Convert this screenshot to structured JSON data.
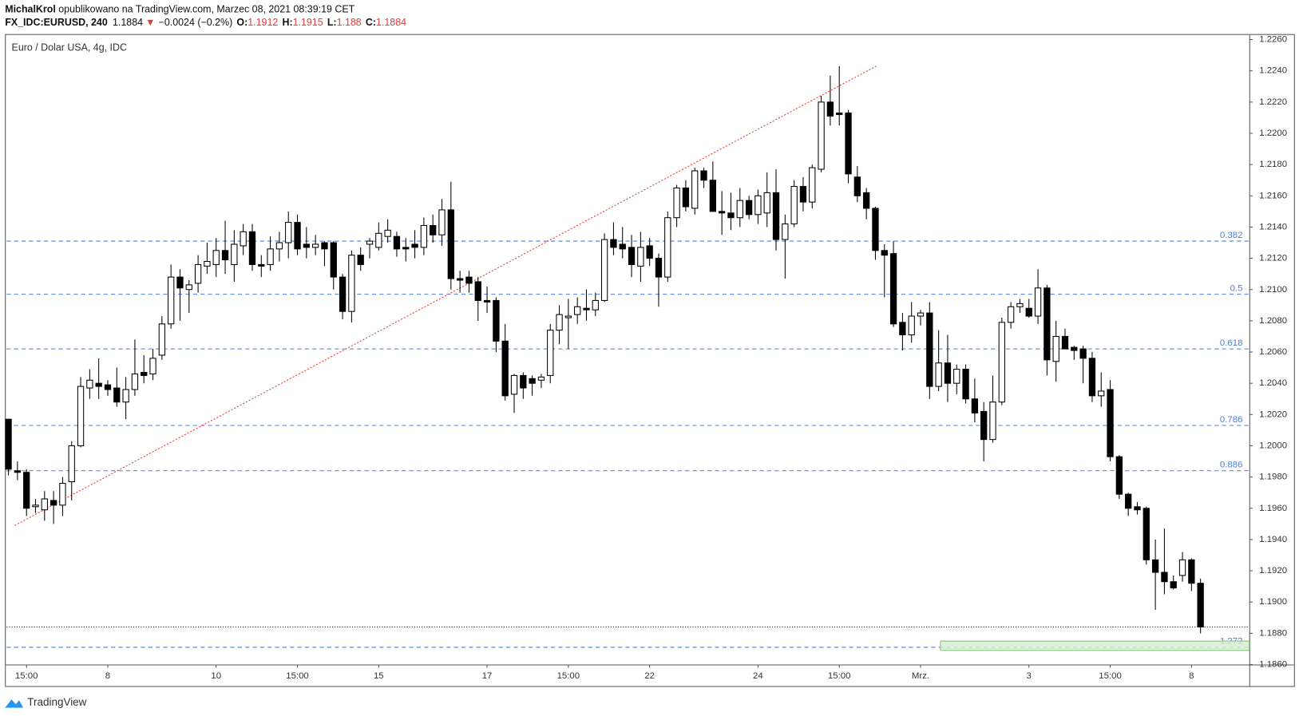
{
  "header": {
    "author": "MichalKrol",
    "published": " opublikowano na TradingView.com, Marzec 08, 2021 08:39:19 CET",
    "symbol": "FX_IDC:EURUSD, 240",
    "direction": "▼",
    "change": "−0.0024 (−0.2%)",
    "open_label": "O:",
    "high_label": "H:",
    "low_label": "L:",
    "close_label": "C:"
  },
  "footer": {
    "brand": "TradingView"
  },
  "chart_data": {
    "type": "candlestick",
    "title": "Euro / Dolar USA, 4g, IDC",
    "up_color": "#ffffff",
    "down_color": "#000000",
    "border_color": "#000000",
    "xlim": [
      -0.2,
      137.4
    ],
    "xticks": [
      {
        "value": 2,
        "label": "15:00"
      },
      {
        "value": 11,
        "label": "8"
      },
      {
        "value": 23,
        "label": "10"
      },
      {
        "value": 32,
        "label": "15:00"
      },
      {
        "value": 41,
        "label": "15"
      },
      {
        "value": 53,
        "label": "17"
      },
      {
        "value": 62,
        "label": "15:00"
      },
      {
        "value": 71,
        "label": "22"
      },
      {
        "value": 83,
        "label": "24"
      },
      {
        "value": 92,
        "label": "15:00"
      },
      {
        "value": 101,
        "label": "Mrz."
      },
      {
        "value": 113,
        "label": "3"
      },
      {
        "value": 122,
        "label": "15:00"
      },
      {
        "value": 131,
        "label": "8"
      }
    ],
    "ylim": [
      1.186,
      1.2263
    ],
    "yticks": [
      {
        "value": 1.226,
        "label": "1.2260"
      },
      {
        "value": 1.224,
        "label": "1.2240"
      },
      {
        "value": 1.222,
        "label": "1.2220"
      },
      {
        "value": 1.22,
        "label": "1.2200"
      },
      {
        "value": 1.218,
        "label": "1.2180"
      },
      {
        "value": 1.216,
        "label": "1.2160"
      },
      {
        "value": 1.214,
        "label": "1.2140"
      },
      {
        "value": 1.212,
        "label": "1.2120"
      },
      {
        "value": 1.21,
        "label": "1.2100"
      },
      {
        "value": 1.208,
        "label": "1.2080"
      },
      {
        "value": 1.206,
        "label": "1.2060"
      },
      {
        "value": 1.204,
        "label": "1.2040"
      },
      {
        "value": 1.202,
        "label": "1.2020"
      },
      {
        "value": 1.2,
        "label": "1.2000"
      },
      {
        "value": 1.198,
        "label": "1.1980"
      },
      {
        "value": 1.196,
        "label": "1.1960"
      },
      {
        "value": 1.194,
        "label": "1.1940"
      },
      {
        "value": 1.192,
        "label": "1.1920"
      },
      {
        "value": 1.19,
        "label": "1.1900"
      },
      {
        "value": 1.188,
        "label": "1.1880"
      },
      {
        "value": 1.186,
        "label": "1.1860"
      }
    ],
    "open": [
      1.2017,
      1.1984,
      1.1983,
      1.1961,
      1.1959,
      1.1965,
      1.1962,
      1.1977,
      1.2,
      1.2037,
      1.204,
      1.2039,
      1.2037,
      1.2028,
      1.2036,
      1.2047,
      1.2046,
      1.2058,
      1.2078,
      1.2108,
      1.21,
      1.2104,
      1.2115,
      1.2116,
      1.2125,
      1.2116,
      1.2128,
      1.2137,
      1.2116,
      1.2116,
      1.2126,
      1.213,
      1.2143,
      1.2129,
      1.2127,
      1.213,
      1.213,
      1.2108,
      1.2086,
      1.2122,
      1.2129,
      1.2127,
      1.2134,
      1.2134,
      1.2127,
      1.2129,
      1.2127,
      1.2141,
      1.2135,
      1.2151,
      1.2107,
      1.2108,
      1.2105,
      1.2093,
      1.2093,
      1.2067,
      1.2033,
      1.2045,
      1.2043,
      1.2042,
      1.2045,
      1.2074,
      1.2082,
      1.2084,
      1.2088,
      1.2087,
      1.2093,
      1.2132,
      1.2129,
      1.2127,
      1.2115,
      1.2128,
      1.212,
      1.2108,
      1.2146,
      1.2165,
      1.2152,
      1.2176,
      1.217,
      1.215,
      1.2149,
      1.2146,
      1.2157,
      1.2148,
      1.2149,
      1.2162,
      1.2132,
      1.2142,
      1.2166,
      1.2156,
      1.2177,
      1.222,
      1.2213,
      1.2213,
      1.2172,
      1.2162,
      1.2152,
      1.2125,
      1.2123,
      1.2079,
      1.2071,
      1.2083,
      1.2085,
      1.2038,
      1.2053,
      1.204,
      1.2049,
      1.203,
      1.2022,
      1.2004,
      1.2028,
      1.2079,
      1.2089,
      1.2088,
      1.2083,
      1.2101,
      1.2054,
      1.207,
      1.2063,
      1.2062,
      1.2056,
      1.2032,
      1.2036,
      1.1993,
      1.1969,
      1.1961,
      1.196,
      1.1927,
      1.1919,
      1.1913,
      1.1917,
      1.1927,
      1.1912
    ],
    "high": [
      1.2017,
      1.199,
      1.1985,
      1.1966,
      1.1971,
      1.1971,
      1.198,
      1.2003,
      1.2044,
      1.2049,
      1.2056,
      1.2042,
      1.205,
      1.2044,
      1.2068,
      1.2058,
      1.2062,
      1.2083,
      1.2116,
      1.2113,
      1.2106,
      1.2122,
      1.213,
      1.2133,
      1.2144,
      1.2138,
      1.2142,
      1.2142,
      1.2122,
      1.2134,
      1.2137,
      1.215,
      1.2148,
      1.214,
      1.2135,
      1.2131,
      1.2131,
      1.211,
      1.2125,
      1.2127,
      1.2133,
      1.2143,
      1.2145,
      1.2137,
      1.2133,
      1.2138,
      1.2146,
      1.2148,
      1.2158,
      1.2169,
      1.2112,
      1.2112,
      1.2108,
      1.2102,
      1.2095,
      1.2078,
      1.2046,
      1.2047,
      1.2045,
      1.2046,
      1.2078,
      1.209,
      1.2094,
      1.2095,
      1.21,
      1.2098,
      1.2136,
      1.2143,
      1.214,
      1.2135,
      1.2137,
      1.2133,
      1.2123,
      1.215,
      1.2167,
      1.217,
      1.2178,
      1.2178,
      1.2182,
      1.2163,
      1.2162,
      1.2165,
      1.216,
      1.2164,
      1.2175,
      1.2177,
      1.2148,
      1.217,
      1.2172,
      1.218,
      1.2224,
      1.2237,
      1.2243,
      1.2215,
      1.2179,
      1.2165,
      1.2153,
      1.2129,
      1.2131,
      1.2085,
      1.2092,
      1.2087,
      1.2092,
      1.2074,
      1.2071,
      1.2052,
      1.2052,
      1.2043,
      1.2028,
      1.2045,
      1.2082,
      1.2092,
      1.2094,
      1.2094,
      1.2113,
      1.2103,
      1.208,
      1.2075,
      1.2064,
      1.2064,
      1.206,
      1.2047,
      1.2042,
      1.1994,
      1.197,
      1.1964,
      1.1961,
      1.194,
      1.1947,
      1.1917,
      1.1932,
      1.1928,
      1.1915
    ],
    "low": [
      1.1981,
      1.1978,
      1.1955,
      1.1957,
      1.1952,
      1.195,
      1.1955,
      1.1965,
      1.1999,
      1.203,
      1.203,
      1.2032,
      1.2025,
      1.2017,
      1.2032,
      1.204,
      1.2042,
      1.2055,
      1.2075,
      1.208,
      1.2085,
      1.2098,
      1.211,
      1.2108,
      1.211,
      1.2105,
      1.2122,
      1.2112,
      1.2108,
      1.2112,
      1.2118,
      1.212,
      1.2122,
      1.212,
      1.2122,
      1.2115,
      1.21,
      1.2081,
      1.2079,
      1.2112,
      1.212,
      1.2125,
      1.213,
      1.2121,
      1.2118,
      1.212,
      1.2122,
      1.213,
      1.2128,
      1.21,
      1.2098,
      1.2098,
      1.208,
      1.2085,
      1.206,
      1.2029,
      1.2021,
      1.203,
      1.2032,
      1.2037,
      1.204,
      1.2065,
      1.2062,
      1.2078,
      1.208,
      1.2083,
      1.2092,
      1.2122,
      1.212,
      1.2108,
      1.2105,
      1.2115,
      1.2089,
      1.2105,
      1.214,
      1.215,
      1.2148,
      1.2165,
      1.215,
      1.2135,
      1.2138,
      1.214,
      1.2145,
      1.2142,
      1.214,
      1.2125,
      1.2107,
      1.214,
      1.215,
      1.2152,
      1.2175,
      1.2205,
      1.2205,
      1.2168,
      1.2156,
      1.2145,
      1.2119,
      1.2095,
      1.2076,
      1.2061,
      1.2066,
      1.2077,
      1.203,
      1.2035,
      1.2028,
      1.2033,
      1.2027,
      1.2015,
      1.199,
      1.2002,
      1.2026,
      1.2075,
      1.2085,
      1.2082,
      1.2078,
      1.2045,
      1.2041,
      1.2062,
      1.2055,
      1.204,
      1.2028,
      1.2025,
      1.199,
      1.1966,
      1.1955,
      1.1956,
      1.1924,
      1.1895,
      1.1905,
      1.1908,
      1.1913,
      1.1907,
      1.188
    ],
    "close": [
      1.1985,
      1.1983,
      1.196,
      1.1962,
      1.1966,
      1.1962,
      1.1976,
      1.2,
      1.2038,
      1.2042,
      1.2038,
      1.2036,
      1.2028,
      1.2036,
      1.2046,
      1.2045,
      1.2056,
      1.2078,
      1.2108,
      1.2101,
      1.2103,
      1.2116,
      1.2118,
      1.2125,
      1.2119,
      1.2129,
      1.2137,
      1.2116,
      1.2115,
      1.2126,
      1.213,
      1.2143,
      1.2126,
      1.2127,
      1.2129,
      1.2126,
      1.2108,
      1.2086,
      1.2122,
      1.2116,
      1.2131,
      1.2136,
      1.2138,
      1.2126,
      1.2126,
      1.2127,
      1.2141,
      1.2135,
      1.2151,
      1.2107,
      1.2106,
      1.2104,
      1.2093,
      1.2092,
      1.2067,
      1.2032,
      1.2045,
      1.2037,
      1.204,
      1.2044,
      1.2074,
      1.2084,
      1.2083,
      1.2089,
      1.2087,
      1.2093,
      1.2132,
      1.2127,
      1.2126,
      1.2116,
      1.2127,
      1.212,
      1.2108,
      1.2146,
      1.2165,
      1.2153,
      1.2176,
      1.217,
      1.215,
      1.2149,
      1.2146,
      1.2157,
      1.2148,
      1.216,
      1.2162,
      1.2132,
      1.2142,
      1.2166,
      1.2156,
      1.2178,
      1.222,
      1.2211,
      1.2212,
      1.2174,
      1.216,
      1.2152,
      1.2125,
      1.2122,
      1.2078,
      1.2071,
      1.2083,
      1.2085,
      1.2038,
      1.2053,
      1.204,
      1.2049,
      1.203,
      1.2021,
      1.2004,
      1.2028,
      1.2079,
      1.2089,
      1.2091,
      1.2083,
      1.2101,
      1.2055,
      1.207,
      1.2062,
      1.2061,
      1.2056,
      1.2032,
      1.2035,
      1.1993,
      1.1969,
      1.196,
      1.1959,
      1.1927,
      1.1919,
      1.1913,
      1.1909,
      1.1927,
      1.1912,
      1.1884
    ],
    "fib_color": "#4a7fd6",
    "fib_levels": [
      {
        "label": "0.382",
        "value": 1.2131
      },
      {
        "label": "0.5",
        "value": 1.2097
      },
      {
        "label": "0.618",
        "value": 1.2062
      },
      {
        "label": "0.786",
        "value": 1.2013
      },
      {
        "label": "0.886",
        "value": 1.1984
      },
      {
        "label": "1.272",
        "value": 1.1871
      }
    ],
    "trendline": {
      "x": [
        0.7,
        96.1
      ],
      "y": [
        1.1949,
        1.2243
      ],
      "color": "#e53935"
    },
    "zone": {
      "x_start": 103.2,
      "low": 1.1869,
      "high": 1.1875,
      "color": "#d6efd0",
      "border": "#7cc47a"
    }
  }
}
